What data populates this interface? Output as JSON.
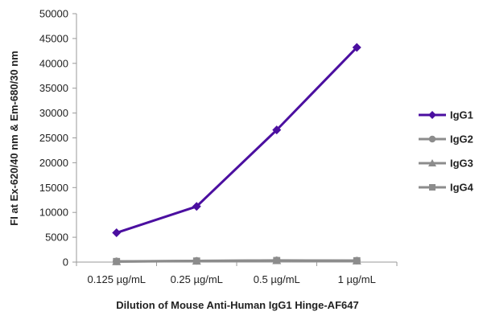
{
  "chart_data": {
    "type": "line",
    "title": "",
    "xlabel": "Dilution of Mouse Anti-Human IgG1 Hinge-AF647",
    "ylabel": "FI at Ex-620/40 nm & Em-680/30 nm",
    "categories": [
      "0.125 µg/mL",
      "0.25 µg/mL",
      "0.5 µg/mL",
      "1 µg/mL"
    ],
    "ylim": [
      0,
      50000
    ],
    "yticks": [
      0,
      5000,
      10000,
      15000,
      20000,
      25000,
      30000,
      35000,
      40000,
      45000,
      50000
    ],
    "grid": false,
    "legend_position": "right",
    "series": [
      {
        "name": "IgG1",
        "values": [
          5900,
          11200,
          26600,
          43200
        ],
        "color": "#4b0fa0",
        "marker": "diamond"
      },
      {
        "name": "IgG2",
        "values": [
          150,
          250,
          350,
          300
        ],
        "color": "#8c8c8c",
        "marker": "circle"
      },
      {
        "name": "IgG3",
        "values": [
          100,
          200,
          300,
          250
        ],
        "color": "#8c8c8c",
        "marker": "triangle"
      },
      {
        "name": "IgG4",
        "values": [
          120,
          220,
          320,
          280
        ],
        "color": "#8c8c8c",
        "marker": "square"
      }
    ]
  }
}
